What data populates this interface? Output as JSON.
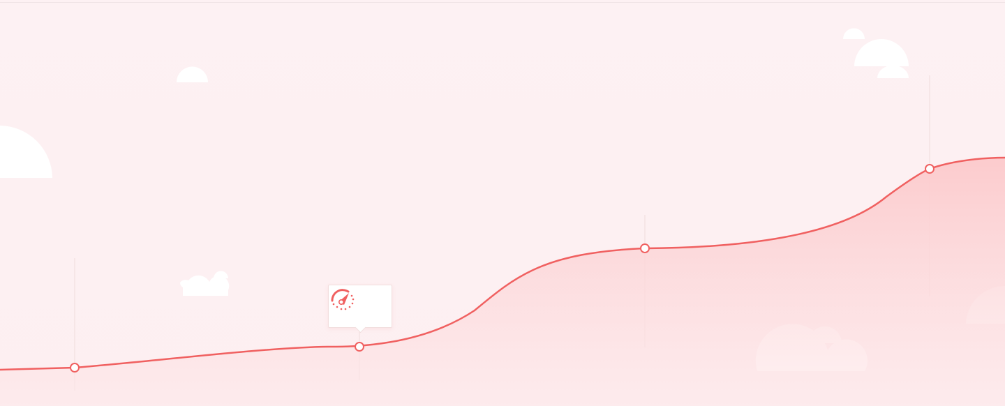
{
  "colors": {
    "background": "#fdf1f3",
    "top_border": "#f0e4e6",
    "line": "#f06060",
    "area_fill": "#fcd0d2",
    "cloud": "#ffffff",
    "guide": "#efdcdc"
  },
  "milestones": [
    {
      "label": "",
      "icon": "circle-marker"
    },
    {
      "label": "",
      "icon": "speedometer-icon"
    },
    {
      "label": "",
      "icon": "circle-marker"
    },
    {
      "label": "",
      "icon": "circle-marker"
    }
  ],
  "tooltip": {
    "icon": "speedometer-icon"
  }
}
